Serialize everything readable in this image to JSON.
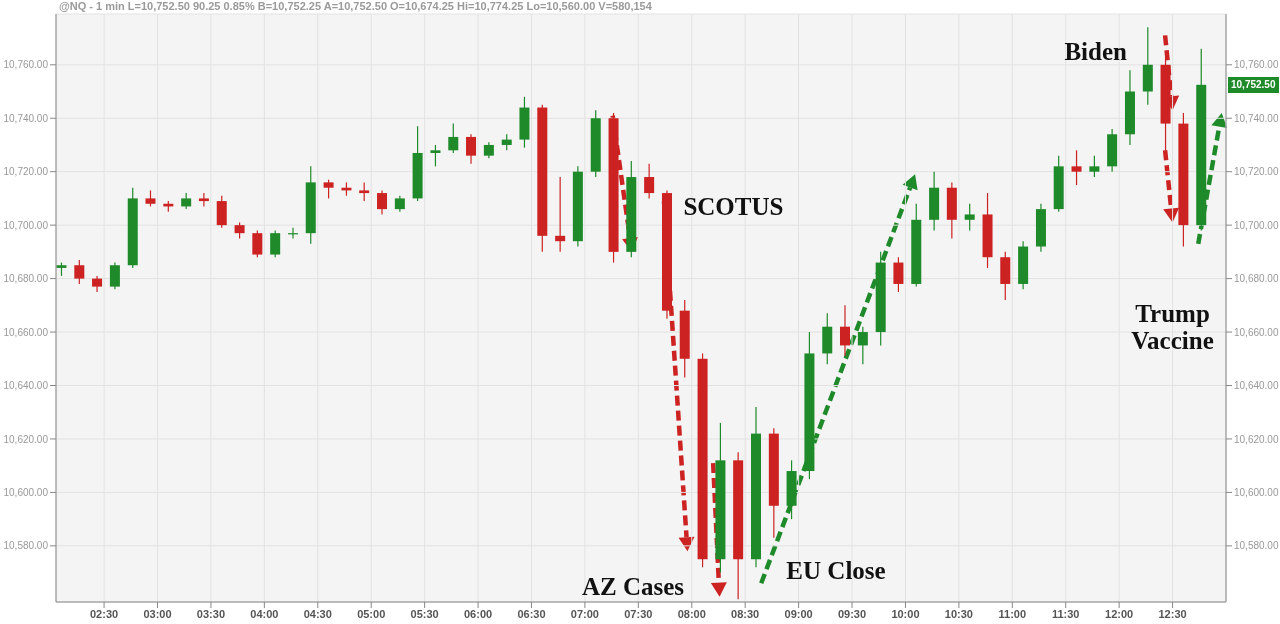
{
  "chart_data": {
    "type": "candlestick",
    "x": [
      2.1,
      2.267,
      2.433,
      2.6,
      2.767,
      2.933,
      3.1,
      3.267,
      3.433,
      3.6,
      3.767,
      3.933,
      4.1,
      4.267,
      4.433,
      4.6,
      4.767,
      4.933,
      5.1,
      5.267,
      5.433,
      5.6,
      5.767,
      5.933,
      6.1,
      6.267,
      6.433,
      6.6,
      6.767,
      6.933,
      7.1,
      7.267,
      7.433,
      7.6,
      7.767,
      7.933,
      8.1,
      8.267,
      8.433,
      8.6,
      8.767,
      8.933,
      9.1,
      9.267,
      9.433,
      9.6,
      9.767,
      9.933,
      10.1,
      10.267,
      10.433,
      10.6,
      10.767,
      10.933,
      11.1,
      11.267,
      11.433,
      11.6,
      11.767,
      11.933,
      12.1,
      12.267,
      12.433,
      12.6,
      12.767
    ],
    "ohlc": [
      [
        10684,
        10686,
        10681,
        10685
      ],
      [
        10685,
        10687,
        10678,
        10680
      ],
      [
        10680,
        10681,
        10675,
        10677
      ],
      [
        10677,
        10686,
        10676,
        10685
      ],
      [
        10685,
        10714,
        10684,
        10710
      ],
      [
        10710,
        10713,
        10707,
        10708
      ],
      [
        10708,
        10709,
        10705,
        10707
      ],
      [
        10707,
        10712,
        10706,
        10710
      ],
      [
        10710,
        10712,
        10707,
        10709
      ],
      [
        10709,
        10711,
        10699,
        10700
      ],
      [
        10700,
        10701,
        10695,
        10697
      ],
      [
        10697,
        10698,
        10688,
        10689
      ],
      [
        10689,
        10698,
        10688,
        10697
      ],
      [
        10697,
        10699,
        10695,
        10697
      ],
      [
        10697,
        10722,
        10693,
        10716
      ],
      [
        10716,
        10717,
        10710,
        10714
      ],
      [
        10714,
        10716,
        10711,
        10713
      ],
      [
        10713,
        10716,
        10709,
        10712
      ],
      [
        10712,
        10713,
        10704,
        10706
      ],
      [
        10706,
        10711,
        10705,
        10710
      ],
      [
        10710,
        10737,
        10709,
        10727
      ],
      [
        10727,
        10730,
        10722,
        10728
      ],
      [
        10728,
        10738,
        10727,
        10733
      ],
      [
        10733,
        10734,
        10723,
        10726
      ],
      [
        10726,
        10731,
        10725,
        10730
      ],
      [
        10730,
        10734,
        10728,
        10732
      ],
      [
        10732,
        10748,
        10729,
        10744
      ],
      [
        10744,
        10745,
        10690,
        10696
      ],
      [
        10696,
        10718,
        10690,
        10694
      ],
      [
        10694,
        10722,
        10692,
        10720
      ],
      [
        10720,
        10743,
        10718,
        10740
      ],
      [
        10740,
        10742,
        10686,
        10690
      ],
      [
        10690,
        10724,
        10688,
        10718
      ],
      [
        10718,
        10723,
        10710,
        10712
      ],
      [
        10712,
        10713,
        10665,
        10668
      ],
      [
        10668,
        10672,
        10643,
        10650
      ],
      [
        10650,
        10652,
        10572,
        10575
      ],
      [
        10575,
        10626,
        10570,
        10612
      ],
      [
        10612,
        10615,
        10560,
        10575
      ],
      [
        10575,
        10632,
        10572,
        10622
      ],
      [
        10622,
        10624,
        10583,
        10595
      ],
      [
        10595,
        10612,
        10590,
        10608
      ],
      [
        10608,
        10660,
        10605,
        10652
      ],
      [
        10652,
        10667,
        10648,
        10662
      ],
      [
        10662,
        10670,
        10651,
        10655
      ],
      [
        10655,
        10662,
        10648,
        10660
      ],
      [
        10660,
        10690,
        10655,
        10686
      ],
      [
        10686,
        10688,
        10675,
        10678
      ],
      [
        10678,
        10708,
        10677,
        10702
      ],
      [
        10702,
        10720,
        10698,
        10714
      ],
      [
        10714,
        10716,
        10695,
        10702
      ],
      [
        10702,
        10708,
        10698,
        10704
      ],
      [
        10704,
        10712,
        10684,
        10688
      ],
      [
        10688,
        10690,
        10672,
        10678
      ],
      [
        10678,
        10694,
        10676,
        10692
      ],
      [
        10692,
        10708,
        10690,
        10706
      ],
      [
        10706,
        10726,
        10705,
        10722
      ],
      [
        10722,
        10728,
        10715,
        10720
      ],
      [
        10720,
        10726,
        10718,
        10722
      ],
      [
        10722,
        10736,
        10720,
        10734
      ],
      [
        10734,
        10758,
        10730,
        10750
      ],
      [
        10750,
        10774,
        10745,
        10760
      ],
      [
        10760,
        10763,
        10728,
        10738
      ],
      [
        10738,
        10742,
        10692,
        10700
      ],
      [
        10700,
        10766,
        10698,
        10752.5
      ]
    ],
    "colors": [
      "#1f8a2a",
      "#cc2222",
      "#cc2222",
      "#1f8a2a",
      "#1f8a2a",
      "#cc2222",
      "#cc2222",
      "#1f8a2a",
      "#cc2222",
      "#cc2222",
      "#cc2222",
      "#cc2222",
      "#1f8a2a",
      "#1f8a2a",
      "#1f8a2a",
      "#cc2222",
      "#cc2222",
      "#cc2222",
      "#cc2222",
      "#1f8a2a",
      "#1f8a2a",
      "#1f8a2a",
      "#1f8a2a",
      "#cc2222",
      "#1f8a2a",
      "#1f8a2a",
      "#1f8a2a",
      "#cc2222",
      "#cc2222",
      "#1f8a2a",
      "#1f8a2a",
      "#cc2222",
      "#1f8a2a",
      "#cc2222",
      "#cc2222",
      "#cc2222",
      "#cc2222",
      "#1f8a2a",
      "#cc2222",
      "#1f8a2a",
      "#cc2222",
      "#1f8a2a",
      "#1f8a2a",
      "#1f8a2a",
      "#cc2222",
      "#1f8a2a",
      "#1f8a2a",
      "#cc2222",
      "#1f8a2a",
      "#1f8a2a",
      "#cc2222",
      "#1f8a2a",
      "#cc2222",
      "#cc2222",
      "#1f8a2a",
      "#1f8a2a",
      "#1f8a2a",
      "#cc2222",
      "#1f8a2a",
      "#1f8a2a",
      "#1f8a2a",
      "#1f8a2a",
      "#cc2222",
      "#cc2222",
      "#1f8a2a"
    ],
    "xlim": [
      2.05,
      13.0
    ],
    "xticks": [
      {
        "value": 2.5,
        "label": "02:30"
      },
      {
        "value": 3,
        "label": "03:00"
      },
      {
        "value": 3.5,
        "label": "03:30"
      },
      {
        "value": 4,
        "label": "04:00"
      },
      {
        "value": 4.5,
        "label": "04:30"
      },
      {
        "value": 5,
        "label": "05:00"
      },
      {
        "value": 5.5,
        "label": "05:30"
      },
      {
        "value": 6,
        "label": "06:00"
      },
      {
        "value": 6.5,
        "label": "06:30"
      },
      {
        "value": 7,
        "label": "07:00"
      },
      {
        "value": 7.5,
        "label": "07:30"
      },
      {
        "value": 8,
        "label": "08:00"
      },
      {
        "value": 8.5,
        "label": "08:30"
      },
      {
        "value": 9,
        "label": "09:00"
      },
      {
        "value": 9.5,
        "label": "09:30"
      },
      {
        "value": 10,
        "label": "10:00"
      },
      {
        "value": 10.5,
        "label": "10:30"
      },
      {
        "value": 11,
        "label": "11:00"
      },
      {
        "value": 11.5,
        "label": "11:30"
      },
      {
        "value": 12,
        "label": "12:00"
      },
      {
        "value": 12.5,
        "label": "12:30"
      }
    ],
    "ylim": [
      10559,
      10779
    ],
    "yticks": [
      {
        "value": 10580,
        "label": "10,580.00"
      },
      {
        "value": 10600,
        "label": "10,600.00"
      },
      {
        "value": 10620,
        "label": "10,620.00"
      },
      {
        "value": 10640,
        "label": "10,640.00"
      },
      {
        "value": 10660,
        "label": "10,660.00"
      },
      {
        "value": 10680,
        "label": "10,680.00"
      },
      {
        "value": 10700,
        "label": "10,700.00"
      },
      {
        "value": 10720,
        "label": "10,720.00"
      },
      {
        "value": 10740,
        "label": "10,740.00"
      },
      {
        "value": 10760,
        "label": "10,760.00"
      }
    ],
    "y2lim": [
      10559,
      10779
    ],
    "y2ticks": [
      {
        "value": 10580,
        "label": "10,580.00"
      },
      {
        "value": 10600,
        "label": "10,600.00"
      },
      {
        "value": 10620,
        "label": "10,620.00"
      },
      {
        "value": 10640,
        "label": "10,640.00"
      },
      {
        "value": 10660,
        "label": "10,660.00"
      },
      {
        "value": 10680,
        "label": "10,680.00"
      },
      {
        "value": 10700,
        "label": "10,700.00"
      },
      {
        "value": 10720,
        "label": "10,720.00"
      },
      {
        "value": 10740,
        "label": "10,740.00"
      },
      {
        "value": 10760,
        "label": "10,760.00"
      }
    ],
    "grid": true,
    "annotations": [
      "@NQ - 1 min L=10,752.50 90.25 0.85% B=10,752.25 A=10,752.50 O=10,674.25 Hi=10,774.25 Lo=10,560.00 V=580,154",
      "SCOTUS",
      "AZ Cases",
      "EU Close",
      "Biden",
      "Trump Vaccine",
      "10,752.50"
    ]
  }
}
